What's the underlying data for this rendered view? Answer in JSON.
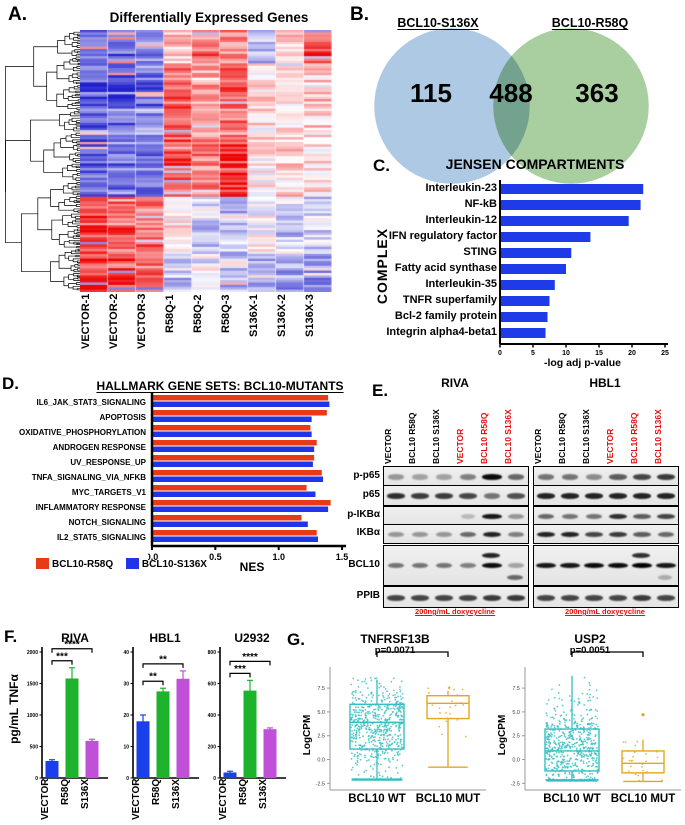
{
  "figure": {
    "panel_labels": {
      "a": "A.",
      "b": "B.",
      "c": "C.",
      "d": "D.",
      "e": "E.",
      "f": "F.",
      "g": "G."
    }
  },
  "chart_data": [
    {
      "id": "deg-heatmap",
      "type": "heatmap",
      "title": "Differentially Expressed Genes",
      "columns": [
        "VECTOR-1",
        "VECTOR-2",
        "VECTOR-3",
        "R58Q-1",
        "R58Q-2",
        "R58Q-3",
        "S136X-1",
        "S136X-2",
        "S136X-3"
      ],
      "rows": 110,
      "colormap": {
        "low": "#2222cc",
        "mid": "#ffffff",
        "high": "#ee0000"
      },
      "sections": [
        {
          "frac": 0.12,
          "base": [
            -0.75,
            -0.6,
            -0.5,
            0.25,
            0.5,
            0.45,
            -0.3,
            0.3,
            0.7
          ]
        },
        {
          "frac": 0.3,
          "base": [
            -0.7,
            -0.75,
            -0.6,
            0.55,
            0.35,
            0.6,
            0.15,
            0.1,
            0.2
          ]
        },
        {
          "frac": 0.21,
          "base": [
            -0.65,
            -0.55,
            -0.6,
            0.6,
            0.45,
            0.75,
            0.05,
            0.15,
            0.1
          ]
        },
        {
          "frac": 0.22,
          "base": [
            0.8,
            0.6,
            0.5,
            0.1,
            -0.2,
            -0.3,
            0.0,
            -0.25,
            -0.2
          ]
        },
        {
          "frac": 0.15,
          "base": [
            0.85,
            0.8,
            0.7,
            -0.3,
            -0.15,
            -0.35,
            -0.35,
            -0.4,
            -0.45
          ]
        }
      ]
    },
    {
      "id": "venn",
      "type": "venn",
      "sets": [
        {
          "label": "BCL10-S136X",
          "unique": 115,
          "color": "#aec9e3"
        },
        {
          "label": "BCL10-R58Q",
          "unique": 363,
          "color": "#a9cfa0"
        }
      ],
      "overlap": 488
    },
    {
      "id": "jensen",
      "type": "bar",
      "orientation": "horizontal",
      "title": "JENSEN COMPARTMENTS",
      "ylabel": "COMPLEX",
      "xlabel": "-log adj p-value",
      "categories": [
        "Interleukin-23",
        "NF-kB",
        "Interleukin-12",
        "IFN regulatory factor",
        "STING",
        "Fatty acid synthase",
        "Interleukin-35",
        "TNFR superfamily",
        "Bcl-2 family protein",
        "Integrin alpha4-beta1"
      ],
      "values": [
        21.7,
        21.3,
        19.5,
        13.7,
        10.8,
        10.0,
        8.3,
        7.5,
        7.2,
        6.9
      ],
      "xlim": [
        0,
        25
      ],
      "xticks": [
        0,
        5,
        10,
        15,
        20,
        25
      ],
      "bar_color": "#1f3be8"
    },
    {
      "id": "hallmark",
      "type": "bar",
      "orientation": "horizontal",
      "grouped": true,
      "title": "HALLMARK GENE SETS: BCL10-MUTANTS",
      "xlabel": "NES",
      "categories": [
        "IL6_JAK_STAT3_SIGNALING",
        "APOPTOSIS",
        "OXIDATIVE_PHOSPHORYLATION",
        "ANDROGEN RESPONSE",
        "UV_RESPONSE_UP",
        "TNFA_SIGNALING_VIA_NFKB",
        "MYC_TARGETS_V1",
        "INFLAMMATORY RESPONSE",
        "NOTCH_SIGNALING",
        "IL2_STAT5_SIGNALING"
      ],
      "series": [
        {
          "name": "BCL10-R58Q",
          "color": "#e83a17",
          "values": [
            1.39,
            1.38,
            1.25,
            1.3,
            1.28,
            1.34,
            1.22,
            1.41,
            1.18,
            1.3
          ]
        },
        {
          "name": "BCL10-S136X",
          "color": "#2135e8",
          "values": [
            1.4,
            1.26,
            1.26,
            1.28,
            1.27,
            1.35,
            1.29,
            1.39,
            1.23,
            1.31
          ]
        }
      ],
      "xlim": [
        0,
        1.5
      ],
      "xticks": [
        "0.0",
        "0.5",
        "1.0",
        "1.5"
      ]
    },
    {
      "id": "western-blot",
      "type": "table",
      "kind": "western-blot",
      "cell_lines": [
        "RIVA",
        "HBL1"
      ],
      "lanes": [
        "VECTOR",
        "BCL10 R58Q",
        "BCL10 S136X",
        "VECTOR",
        "BCL10 R58Q",
        "BCL10 S136X"
      ],
      "lane_colors": [
        "#000000",
        "#000000",
        "#000000",
        "#e01010",
        "#e01010",
        "#e01010"
      ],
      "proteins": [
        "p-p65",
        "p65",
        "p-IKBα",
        "IKBα",
        "BCL10",
        "PPIB"
      ],
      "treatment_label": "200ng/mL doxycycline",
      "bands": {
        "RIVA": {
          "p-p65": [
            0.35,
            0.3,
            0.3,
            0.45,
            0.95,
            0.55
          ],
          "p65": [
            0.8,
            0.75,
            0.75,
            0.7,
            0.5,
            0.65
          ],
          "p-IKBα": [
            0.05,
            0.05,
            0.05,
            0.2,
            0.9,
            0.35
          ],
          "IKBα": [
            0.35,
            0.35,
            0.35,
            0.55,
            0.85,
            0.45
          ],
          "BCL10": [
            0.5,
            0.5,
            0.5,
            0.45,
            0.95,
            0.3
          ],
          "PPIB": [
            0.7,
            0.7,
            0.7,
            0.7,
            0.75,
            0.75
          ]
        },
        "HBL1": {
          "p-p65": [
            0.5,
            0.5,
            0.4,
            0.6,
            0.7,
            0.75
          ],
          "p65": [
            0.85,
            0.85,
            0.85,
            0.85,
            0.85,
            0.85
          ],
          "p-IKBα": [
            0.55,
            0.5,
            0.5,
            0.8,
            0.6,
            0.7
          ],
          "IKBα": [
            0.85,
            0.85,
            0.7,
            0.75,
            0.6,
            0.55
          ],
          "BCL10": [
            0.9,
            0.9,
            0.95,
            0.95,
            1.0,
            0.9
          ],
          "PPIB": [
            0.7,
            0.7,
            0.7,
            0.7,
            0.75,
            0.7
          ]
        }
      },
      "extra_bands": [
        {
          "line": "RIVA",
          "protein": "BCL10",
          "lane": 4,
          "dy": -9,
          "intensity": 0.85
        },
        {
          "line": "RIVA",
          "protein": "BCL10",
          "lane": 5,
          "dy": 13,
          "intensity": 0.55
        },
        {
          "line": "HBL1",
          "protein": "BCL10",
          "lane": 4,
          "dy": -9,
          "intensity": 0.8
        },
        {
          "line": "HBL1",
          "protein": "BCL10",
          "lane": 5,
          "dy": 13,
          "intensity": 0.25
        }
      ]
    },
    {
      "id": "tnfa-riva",
      "type": "bar",
      "title": "RIVA",
      "ylabel": "pg/mL TNFα",
      "categories": [
        "VECTOR",
        "R58Q",
        "S136X"
      ],
      "values": [
        270,
        1580,
        590
      ],
      "errors": [
        20,
        170,
        25
      ],
      "colors": [
        "#1b3fe8",
        "#1eb32c",
        "#c050d8"
      ],
      "ylim": [
        0,
        2000
      ],
      "yticks": [
        0,
        500,
        1000,
        1500,
        2000
      ],
      "significance": [
        {
          "from": 0,
          "to": 1,
          "label": "***"
        },
        {
          "from": 0,
          "to": 2,
          "label": "****"
        }
      ]
    },
    {
      "id": "tnfa-hbl1",
      "type": "bar",
      "title": "HBL1",
      "categories": [
        "VECTOR",
        "R58Q",
        "S136X"
      ],
      "values": [
        18,
        27.5,
        31.5
      ],
      "errors": [
        2,
        1,
        2.5
      ],
      "colors": [
        "#1b3fe8",
        "#1eb32c",
        "#c050d8"
      ],
      "ylim": [
        0,
        40
      ],
      "yticks": [
        0,
        10,
        20,
        30,
        40
      ],
      "significance": [
        {
          "from": 0,
          "to": 1,
          "label": "**"
        },
        {
          "from": 0,
          "to": 2,
          "label": "**"
        }
      ]
    },
    {
      "id": "tnfa-u2932",
      "type": "bar",
      "title": "U2932",
      "categories": [
        "VECTOR",
        "R58Q",
        "S136X"
      ],
      "values": [
        35,
        555,
        310
      ],
      "errors": [
        8,
        65,
        8
      ],
      "colors": [
        "#1b3fe8",
        "#1eb32c",
        "#c050d8"
      ],
      "ylim": [
        0,
        800
      ],
      "yticks": [
        0,
        200,
        400,
        600,
        800
      ],
      "significance": [
        {
          "from": 0,
          "to": 1,
          "label": "***"
        },
        {
          "from": 0,
          "to": 2,
          "label": "****"
        }
      ]
    },
    {
      "id": "tnfrsf13b",
      "type": "box",
      "title": "TNFRSF13B",
      "pvalue": "p=0.0071",
      "ylabel": "LogCPM",
      "categories": [
        "BCL10 WT",
        "BCL10 MUT"
      ],
      "yticks": [
        -2.5,
        0.0,
        2.5,
        5.0,
        7.5
      ],
      "groups": [
        {
          "label": "BCL10 WT",
          "color": "#35bec1",
          "n_points": 560,
          "center": 3.3,
          "spread": 2.3,
          "median": 3.9,
          "q1": 1.1,
          "q3": 5.8,
          "whisker_low": -2.1,
          "whisker_high": 8.4,
          "floor": -2.1,
          "ceil": 8.6
        },
        {
          "label": "BCL10 MUT",
          "color": "#e3a71d",
          "n_points": 27,
          "center": 5.4,
          "spread": 1.6,
          "median": 5.9,
          "q1": 4.3,
          "q3": 6.7,
          "whisker_low": -0.8,
          "whisker_high": 7.2,
          "floor": -0.8,
          "ceil": 7.8
        }
      ]
    },
    {
      "id": "usp2",
      "type": "box",
      "title": "USP2",
      "pvalue": "p=0.0051",
      "ylabel": "LogCPM",
      "categories": [
        "BCL10 WT",
        "BCL10 MUT"
      ],
      "yticks": [
        -2.5,
        0.0,
        2.5,
        5.0,
        7.5
      ],
      "groups": [
        {
          "label": "BCL10 WT",
          "color": "#35bec1",
          "n_points": 620,
          "center": 1.0,
          "spread": 2.5,
          "median": 0.9,
          "q1": -1.2,
          "q3": 3.2,
          "whisker_low": -2.2,
          "whisker_high": 8.8,
          "floor": -2.2,
          "ceil": 8.9
        },
        {
          "label": "BCL10 MUT",
          "color": "#e3a71d",
          "n_points": 26,
          "center": -0.3,
          "spread": 1.2,
          "median": -0.4,
          "q1": -1.4,
          "q3": 0.9,
          "whisker_low": -2.3,
          "whisker_high": 2.1,
          "floor": -2.3,
          "ceil": 2.1,
          "outliers": [
            4.7
          ]
        }
      ]
    }
  ]
}
